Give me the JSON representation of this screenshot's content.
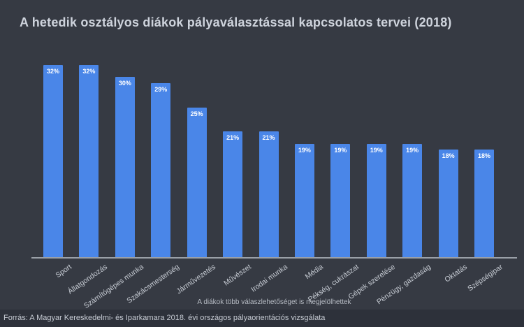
{
  "chart_data": {
    "type": "bar",
    "title": "A hetedik osztályos diákok pályaválasztással kapcsolatos tervei (2018)",
    "categories": [
      "Sport",
      "Állatgondozás",
      "Számítógépes munka",
      "Szakácsmesterség",
      "Járművezetés",
      "Művészet",
      "Irodai munka",
      "Média",
      "Pékség, cukrászat",
      "Gépek szerelése",
      "Pénzügy, gazdaság",
      "Oktatás",
      "Szépségipar"
    ],
    "values": [
      32,
      32,
      30,
      29,
      25,
      21,
      21,
      19,
      19,
      19,
      19,
      18,
      18
    ],
    "value_suffix": "%",
    "ylim": [
      0,
      32
    ],
    "bar_color": "#4a86e8",
    "grid": false,
    "legend": false,
    "note": "A diákok több válaszlehetőséget is megjelölhettek"
  },
  "footer": {
    "source": "Forrás: A Magyar Kereskedelmi- és Iparkamara 2018. évi országos pályaorientációs vizsgálata"
  }
}
